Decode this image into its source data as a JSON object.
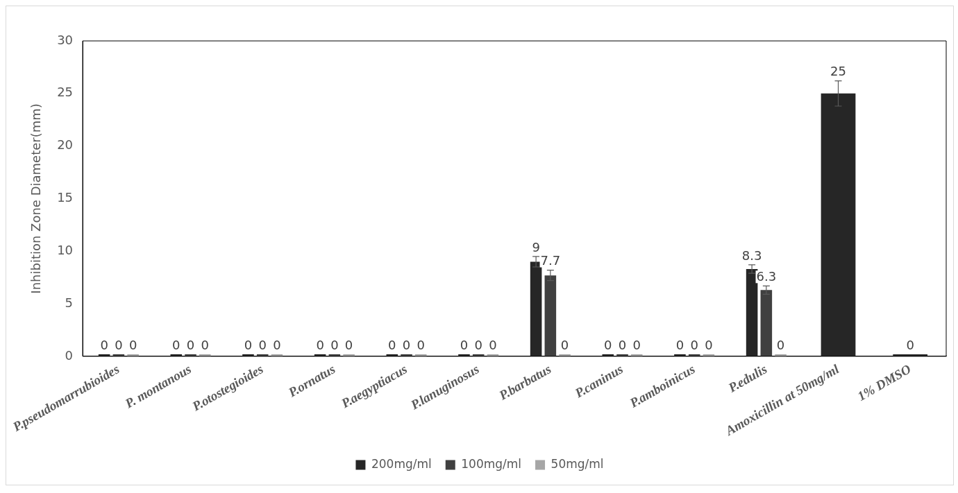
{
  "chart_data": {
    "type": "bar",
    "ylabel": "Inhibition Zone Diameter(mm)",
    "categories": [
      "P.pseudomarrubioides",
      "P. montanous",
      "P.otostegioides",
      "P.ornatus",
      "P.aegyptiacus",
      "P.lanuginosus",
      "P.barbatus",
      "P.caninus",
      "P.amboinicus",
      "P.edulis",
      "Amoxicillin at 50mg/ml",
      "1% DMSO"
    ],
    "series": [
      {
        "name": "200mg/ml",
        "color": "#262626",
        "values": [
          0,
          0,
          0,
          0,
          0,
          0,
          9,
          0,
          0,
          8.3,
          25,
          0
        ],
        "errors": [
          null,
          null,
          null,
          null,
          null,
          null,
          0.5,
          null,
          null,
          0.4,
          1.2,
          null
        ]
      },
      {
        "name": "100mg/ml",
        "color": "#404040",
        "values": [
          0,
          0,
          0,
          0,
          0,
          0,
          7.7,
          0,
          0,
          6.3,
          null,
          null
        ],
        "errors": [
          null,
          null,
          null,
          null,
          null,
          null,
          0.5,
          null,
          null,
          0.4,
          null,
          null
        ]
      },
      {
        "name": "50mg/ml",
        "color": "#a6a6a6",
        "values": [
          0,
          0,
          0,
          0,
          0,
          0,
          0,
          0,
          0,
          0,
          null,
          null
        ]
      }
    ],
    "ylim": [
      0,
      30
    ],
    "yticks": [
      0,
      5,
      10,
      15,
      20,
      25,
      30
    ],
    "grid": false,
    "legend": "bottom",
    "data_labels": true
  }
}
